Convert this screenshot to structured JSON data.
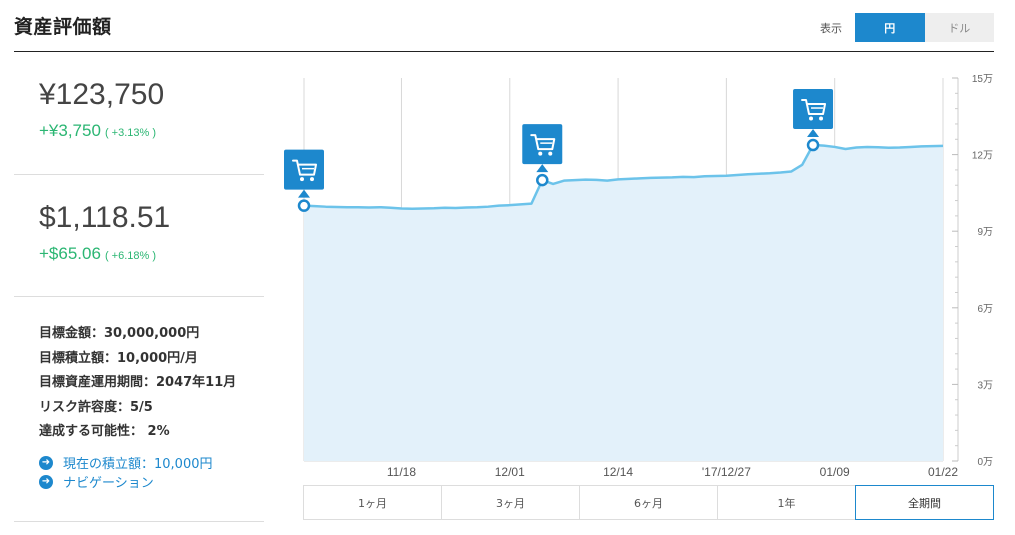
{
  "header": {
    "title": "資産評価額",
    "display_label": "表示",
    "currency_options": [
      {
        "label": "円",
        "active": true
      },
      {
        "label": "ドル",
        "active": false
      }
    ]
  },
  "summary": {
    "yen": {
      "value": "¥123,750",
      "change": "+¥3,750",
      "change_pct": "( +3.13% )"
    },
    "usd": {
      "value": "$1,118.51",
      "change": "+$65.06",
      "change_pct": "( +6.18% )"
    }
  },
  "goals": [
    "目標金額：30,000,000円",
    "目標積立額：10,000円/月",
    "目標資産運用期間：2047年11月",
    "リスク許容度：5/5",
    "達成する可能性： 2%"
  ],
  "links": [
    {
      "icon": "arrow-right-circle-icon",
      "label": "現在の積立額：10,000円"
    },
    {
      "icon": "arrow-right-circle-icon",
      "label": "ナビゲーション"
    }
  ],
  "colors": {
    "accent": "#1d88cd",
    "positive": "#2bb673",
    "line": "#6cc3ea",
    "area": "#e3f1fa"
  },
  "chart_data": {
    "type": "area",
    "y_tick_labels": [
      "15万",
      "12万",
      "9万",
      "6万",
      "3万",
      "0万"
    ],
    "y_ticks": [
      150000,
      120000,
      90000,
      60000,
      30000,
      0
    ],
    "ylim": [
      0,
      150000
    ],
    "x_tick_labels": [
      "11/18",
      "12/01",
      "12/14",
      "'17/12/27",
      "01/09",
      "01/22"
    ],
    "x_tick_positions": [
      9,
      19,
      29,
      39,
      49,
      59
    ],
    "grid": true,
    "purchase_marker_icon": "shopping-cart-icon",
    "purchase_indices": [
      0,
      22,
      47
    ],
    "points": [
      100000,
      99800,
      99600,
      99500,
      99400,
      99400,
      99300,
      99400,
      99200,
      98900,
      98800,
      98900,
      99000,
      99200,
      99100,
      99300,
      99400,
      99600,
      100000,
      100200,
      100500,
      100800,
      110000,
      108500,
      109800,
      110000,
      110200,
      110100,
      109800,
      110300,
      110500,
      110700,
      110900,
      111000,
      111100,
      111300,
      111200,
      111500,
      111600,
      111700,
      112000,
      112300,
      112500,
      112700,
      113000,
      113400,
      116000,
      123750,
      123500,
      123000,
      122200,
      122800,
      123000,
      122900,
      122700,
      122800,
      123000,
      123200,
      123300,
      123400
    ]
  },
  "periods": [
    {
      "label": "1ヶ月",
      "active": false
    },
    {
      "label": "3ヶ月",
      "active": false
    },
    {
      "label": "6ヶ月",
      "active": false
    },
    {
      "label": "1年",
      "active": false
    },
    {
      "label": "全期間",
      "active": true
    }
  ]
}
